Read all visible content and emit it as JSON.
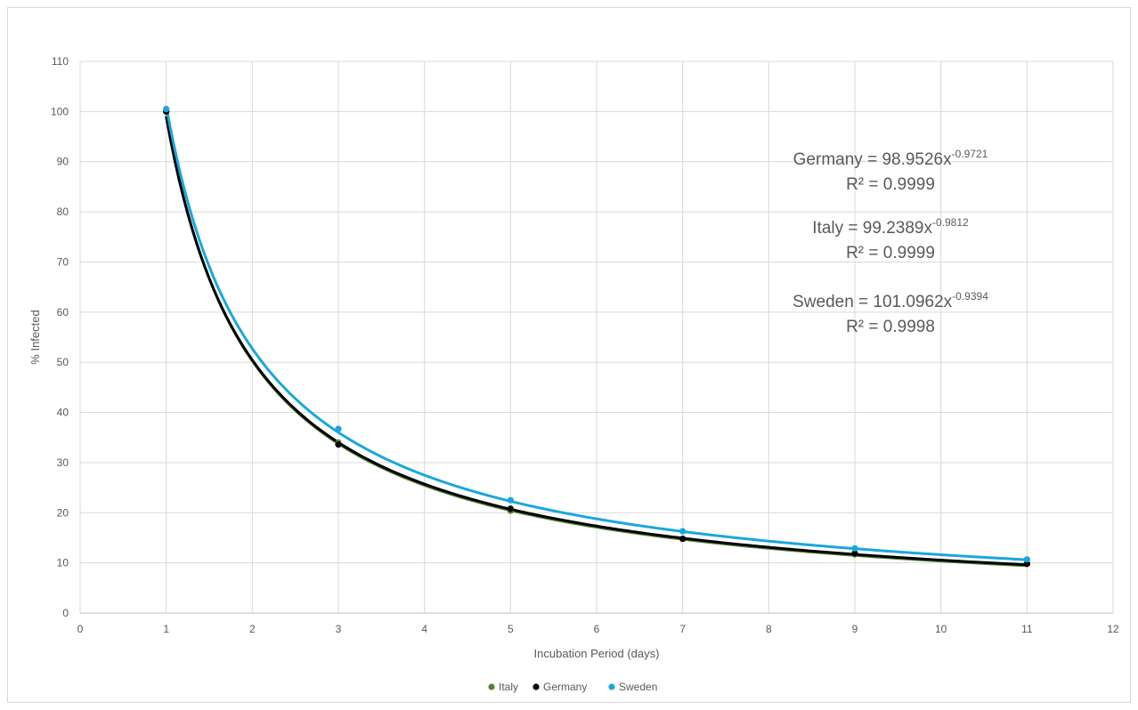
{
  "chart_data": {
    "type": "scatter",
    "xlabel": "Incubation Period (days)",
    "ylabel": "% Infected",
    "xlim": [
      0,
      12
    ],
    "ylim": [
      0,
      110
    ],
    "xticks": [
      "0",
      "1",
      "2",
      "3",
      "4",
      "5",
      "6",
      "7",
      "8",
      "9",
      "10",
      "11",
      "12"
    ],
    "yticks": [
      "0",
      "10",
      "20",
      "30",
      "40",
      "50",
      "60",
      "70",
      "80",
      "90",
      "100",
      "110"
    ],
    "grid": true,
    "legend_position": "bottom",
    "x": [
      1,
      3,
      5,
      7,
      9,
      11
    ],
    "series": [
      {
        "name": "Italy",
        "color": "#548235",
        "values": [
          100,
          34.0,
          20.4,
          14.8,
          11.7,
          9.9
        ],
        "trend": {
          "coef": 99.2389,
          "exp": -0.9812
        }
      },
      {
        "name": "Germany",
        "color": "#000000",
        "values": [
          100,
          33.6,
          20.8,
          14.8,
          11.9,
          9.8
        ],
        "trend": {
          "coef": 98.9526,
          "exp": -0.9721
        }
      },
      {
        "name": "Sweden",
        "color": "#1aa7dc",
        "values": [
          100.5,
          36.7,
          22.5,
          16.3,
          12.9,
          10.7
        ],
        "trend": {
          "coef": 101.0962,
          "exp": -0.9394
        }
      }
    ],
    "annotations": [
      {
        "main": "Germany = 98.9526x",
        "sup": "-0.9721",
        "r2": "R² = 0.9999"
      },
      {
        "main": "Italy = 99.2389x",
        "sup": "-0.9812",
        "r2": "R² = 0.9999"
      },
      {
        "main": "Sweden = 101.0962x",
        "sup": "-0.9394",
        "r2": "R² = 0.9998"
      }
    ]
  }
}
